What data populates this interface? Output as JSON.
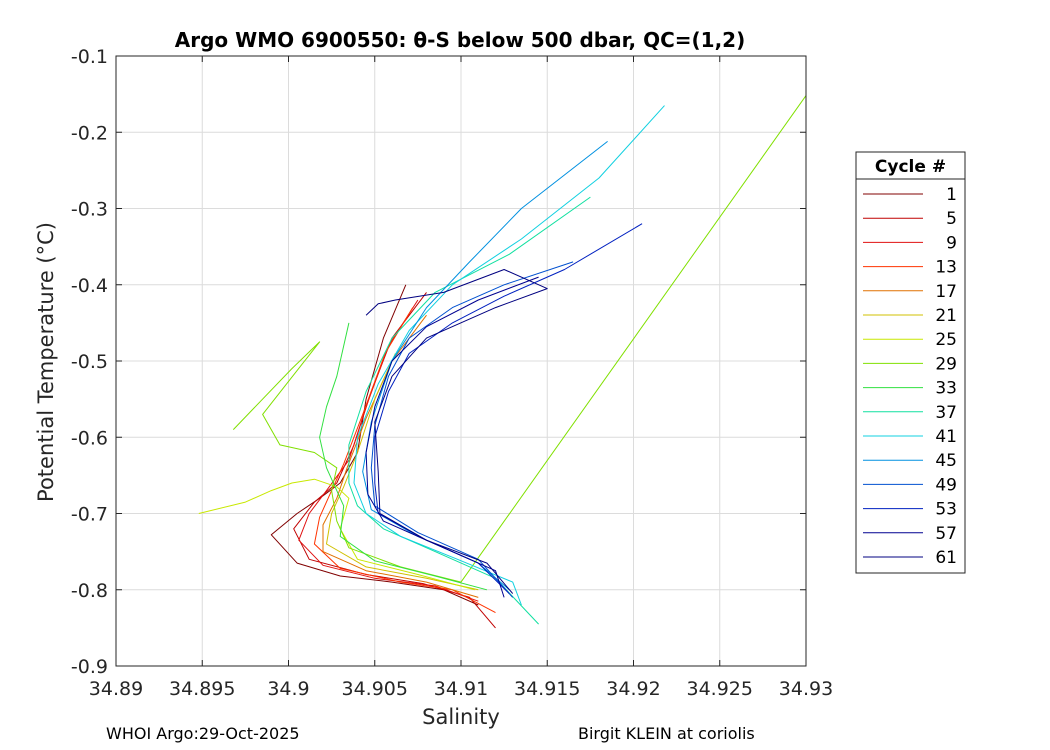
{
  "chart_data": {
    "type": "line",
    "title": "Argo WMO 6900550: θ-S below 500 dbar,  QC=(1,2)",
    "xlabel": "Salinity",
    "ylabel": "Potential Temperature (°C)",
    "xlim": [
      34.89,
      34.93
    ],
    "ylim": [
      -0.9,
      -0.1
    ],
    "x_ticks": [
      34.89,
      34.895,
      34.9,
      34.905,
      34.91,
      34.915,
      34.92,
      34.925,
      34.93
    ],
    "x_tick_labels": [
      "34.89",
      "34.895",
      "34.9",
      "34.905",
      "34.91",
      "34.915",
      "34.92",
      "34.925",
      "34.93"
    ],
    "y_ticks": [
      -0.1,
      -0.2,
      -0.3,
      -0.4,
      -0.5,
      -0.6,
      -0.7,
      -0.8,
      -0.9
    ],
    "y_tick_labels": [
      "-0.1",
      "-0.2",
      "-0.3",
      "-0.4",
      "-0.5",
      "-0.6",
      "-0.7",
      "-0.8",
      "-0.9"
    ],
    "grid": true,
    "legend": {
      "title": "Cycle #",
      "placement": "right",
      "entries": [
        {
          "label": "1",
          "color": "#800000"
        },
        {
          "label": "5",
          "color": "#c00000"
        },
        {
          "label": "9",
          "color": "#e01010"
        },
        {
          "label": "13",
          "color": "#ff3300"
        },
        {
          "label": "17",
          "color": "#e07000"
        },
        {
          "label": "21",
          "color": "#d0c000"
        },
        {
          "label": "25",
          "color": "#c8e800"
        },
        {
          "label": "29",
          "color": "#80e000"
        },
        {
          "label": "33",
          "color": "#30e040"
        },
        {
          "label": "37",
          "color": "#10e0a0"
        },
        {
          "label": "41",
          "color": "#10d0e0"
        },
        {
          "label": "45",
          "color": "#0090e0"
        },
        {
          "label": "49",
          "color": "#0050d0"
        },
        {
          "label": "53",
          "color": "#0020c0"
        },
        {
          "label": "57",
          "color": "#000090"
        },
        {
          "label": "61",
          "color": "#000080"
        }
      ]
    },
    "series": [
      {
        "name": "1",
        "color": "#800000",
        "points": [
          [
            34.9068,
            -0.4
          ],
          [
            34.9055,
            -0.47
          ],
          [
            34.9045,
            -0.55
          ],
          [
            34.904,
            -0.62
          ],
          [
            34.903,
            -0.66
          ],
          [
            34.9018,
            -0.68
          ],
          [
            34.9005,
            -0.7
          ],
          [
            34.899,
            -0.728
          ],
          [
            34.9005,
            -0.765
          ],
          [
            34.903,
            -0.782
          ],
          [
            34.906,
            -0.79
          ],
          [
            34.909,
            -0.8
          ],
          [
            34.911,
            -0.82
          ]
        ]
      },
      {
        "name": "5",
        "color": "#c00000",
        "points": [
          [
            34.908,
            -0.41
          ],
          [
            34.906,
            -0.47
          ],
          [
            34.9048,
            -0.54
          ],
          [
            34.9038,
            -0.61
          ],
          [
            34.9028,
            -0.66
          ],
          [
            34.9015,
            -0.685
          ],
          [
            34.9003,
            -0.72
          ],
          [
            34.9012,
            -0.76
          ],
          [
            34.9045,
            -0.78
          ],
          [
            34.9078,
            -0.792
          ],
          [
            34.9105,
            -0.81
          ],
          [
            34.912,
            -0.85
          ]
        ]
      },
      {
        "name": "9",
        "color": "#e01010",
        "points": [
          [
            34.9075,
            -0.42
          ],
          [
            34.9058,
            -0.48
          ],
          [
            34.9045,
            -0.56
          ],
          [
            34.9035,
            -0.63
          ],
          [
            34.9022,
            -0.67
          ],
          [
            34.9012,
            -0.7
          ],
          [
            34.9006,
            -0.735
          ],
          [
            34.902,
            -0.768
          ],
          [
            34.905,
            -0.785
          ],
          [
            34.9085,
            -0.795
          ],
          [
            34.911,
            -0.815
          ]
        ]
      },
      {
        "name": "13",
        "color": "#ff3300",
        "points": [
          [
            34.9072,
            -0.43
          ],
          [
            34.9056,
            -0.49
          ],
          [
            34.9043,
            -0.57
          ],
          [
            34.9032,
            -0.635
          ],
          [
            34.9025,
            -0.67
          ],
          [
            34.9018,
            -0.705
          ],
          [
            34.9015,
            -0.74
          ],
          [
            34.903,
            -0.772
          ],
          [
            34.9065,
            -0.79
          ],
          [
            34.9095,
            -0.8
          ],
          [
            34.912,
            -0.83
          ]
        ]
      },
      {
        "name": "17",
        "color": "#e07000",
        "points": [
          [
            34.908,
            -0.44
          ],
          [
            34.906,
            -0.5
          ],
          [
            34.9045,
            -0.575
          ],
          [
            34.9034,
            -0.64
          ],
          [
            34.9028,
            -0.68
          ],
          [
            34.902,
            -0.715
          ],
          [
            34.902,
            -0.75
          ],
          [
            34.9045,
            -0.775
          ],
          [
            34.908,
            -0.79
          ],
          [
            34.911,
            -0.81
          ]
        ]
      },
      {
        "name": "21",
        "color": "#d0c000",
        "points": [
          [
            34.9062,
            -0.49
          ],
          [
            34.905,
            -0.55
          ],
          [
            34.904,
            -0.62
          ],
          [
            34.9032,
            -0.665
          ],
          [
            34.9025,
            -0.7
          ],
          [
            34.9022,
            -0.74
          ],
          [
            34.9045,
            -0.77
          ],
          [
            34.908,
            -0.785
          ],
          [
            34.911,
            -0.8
          ]
        ]
      },
      {
        "name": "25",
        "color": "#c8e800",
        "points": [
          [
            34.8948,
            -0.7
          ],
          [
            34.8975,
            -0.685
          ],
          [
            34.899,
            -0.67
          ],
          [
            34.9002,
            -0.66
          ],
          [
            34.9015,
            -0.655
          ],
          [
            34.9028,
            -0.665
          ],
          [
            34.9035,
            -0.68
          ],
          [
            34.903,
            -0.72
          ],
          [
            34.904,
            -0.76
          ],
          [
            34.9075,
            -0.78
          ],
          [
            34.9108,
            -0.8
          ]
        ]
      },
      {
        "name": "29",
        "color": "#80e000",
        "points": [
          [
            34.8968,
            -0.59
          ],
          [
            34.9002,
            -0.51
          ],
          [
            34.9018,
            -0.475
          ],
          [
            34.8985,
            -0.57
          ],
          [
            34.8995,
            -0.61
          ],
          [
            34.9015,
            -0.62
          ],
          [
            34.9028,
            -0.64
          ],
          [
            34.9025,
            -0.67
          ],
          [
            34.9028,
            -0.71
          ],
          [
            34.9035,
            -0.745
          ],
          [
            34.9065,
            -0.77
          ],
          [
            34.91,
            -0.79
          ],
          [
            34.93,
            -0.152
          ]
        ]
      },
      {
        "name": "33",
        "color": "#30e040",
        "points": [
          [
            34.9035,
            -0.45
          ],
          [
            34.9028,
            -0.52
          ],
          [
            34.9022,
            -0.56
          ],
          [
            34.9018,
            -0.6
          ],
          [
            34.9022,
            -0.64
          ],
          [
            34.9032,
            -0.69
          ],
          [
            34.903,
            -0.73
          ],
          [
            34.905,
            -0.762
          ],
          [
            34.9085,
            -0.782
          ],
          [
            34.9115,
            -0.8
          ]
        ]
      },
      {
        "name": "37",
        "color": "#10e0a0",
        "points": [
          [
            34.9175,
            -0.285
          ],
          [
            34.9128,
            -0.36
          ],
          [
            34.9085,
            -0.41
          ],
          [
            34.906,
            -0.47
          ],
          [
            34.9045,
            -0.54
          ],
          [
            34.9035,
            -0.61
          ],
          [
            34.9035,
            -0.66
          ],
          [
            34.904,
            -0.69
          ],
          [
            34.9055,
            -0.72
          ],
          [
            34.9085,
            -0.75
          ],
          [
            34.912,
            -0.785
          ],
          [
            34.9145,
            -0.845
          ]
        ]
      },
      {
        "name": "41",
        "color": "#10d0e0",
        "points": [
          [
            34.9218,
            -0.165
          ],
          [
            34.918,
            -0.26
          ],
          [
            34.9135,
            -0.34
          ],
          [
            34.9095,
            -0.4
          ],
          [
            34.907,
            -0.46
          ],
          [
            34.9052,
            -0.53
          ],
          [
            34.904,
            -0.6
          ],
          [
            34.9038,
            -0.66
          ],
          [
            34.9045,
            -0.7
          ],
          [
            34.9065,
            -0.73
          ],
          [
            34.9098,
            -0.76
          ],
          [
            34.913,
            -0.79
          ],
          [
            34.9135,
            -0.82
          ]
        ]
      },
      {
        "name": "45",
        "color": "#0090e0",
        "points": [
          [
            34.9185,
            -0.212
          ],
          [
            34.9135,
            -0.3
          ],
          [
            34.9105,
            -0.37
          ],
          [
            34.908,
            -0.43
          ],
          [
            34.906,
            -0.5
          ],
          [
            34.9048,
            -0.58
          ],
          [
            34.9043,
            -0.645
          ],
          [
            34.9048,
            -0.695
          ],
          [
            34.9075,
            -0.73
          ],
          [
            34.911,
            -0.765
          ],
          [
            34.9128,
            -0.8
          ]
        ]
      },
      {
        "name": "49",
        "color": "#0050d0",
        "points": [
          [
            34.9165,
            -0.37
          ],
          [
            34.9125,
            -0.4
          ],
          [
            34.9095,
            -0.43
          ],
          [
            34.907,
            -0.47
          ],
          [
            34.9058,
            -0.52
          ],
          [
            34.905,
            -0.585
          ],
          [
            34.9048,
            -0.64
          ],
          [
            34.905,
            -0.69
          ],
          [
            34.9075,
            -0.725
          ],
          [
            34.911,
            -0.76
          ],
          [
            34.913,
            -0.81
          ]
        ]
      },
      {
        "name": "53",
        "color": "#0020c0",
        "points": [
          [
            34.9205,
            -0.32
          ],
          [
            34.916,
            -0.38
          ],
          [
            34.9125,
            -0.415
          ],
          [
            34.9095,
            -0.45
          ],
          [
            34.907,
            -0.49
          ],
          [
            34.9058,
            -0.54
          ],
          [
            34.905,
            -0.6
          ],
          [
            34.905,
            -0.66
          ],
          [
            34.9052,
            -0.7
          ],
          [
            34.908,
            -0.735
          ],
          [
            34.911,
            -0.765
          ],
          [
            34.9128,
            -0.805
          ]
        ]
      },
      {
        "name": "57",
        "color": "#000090",
        "points": [
          [
            34.9145,
            -0.39
          ],
          [
            34.911,
            -0.42
          ],
          [
            34.908,
            -0.455
          ],
          [
            34.906,
            -0.5
          ],
          [
            34.905,
            -0.56
          ],
          [
            34.9045,
            -0.62
          ],
          [
            34.9046,
            -0.675
          ],
          [
            34.9055,
            -0.71
          ],
          [
            34.9085,
            -0.74
          ],
          [
            34.912,
            -0.775
          ],
          [
            34.9125,
            -0.81
          ]
        ]
      },
      {
        "name": "61",
        "color": "#000080",
        "points": [
          [
            34.9045,
            -0.44
          ],
          [
            34.9052,
            -0.425
          ],
          [
            34.9062,
            -0.42
          ],
          [
            34.909,
            -0.41
          ],
          [
            34.9125,
            -0.38
          ],
          [
            34.915,
            -0.405
          ],
          [
            34.912,
            -0.43
          ],
          [
            34.908,
            -0.47
          ],
          [
            34.906,
            -0.52
          ],
          [
            34.905,
            -0.58
          ],
          [
            34.9052,
            -0.645
          ],
          [
            34.9053,
            -0.7
          ],
          [
            34.908,
            -0.735
          ],
          [
            34.9115,
            -0.765
          ],
          [
            34.913,
            -0.805
          ]
        ]
      }
    ]
  },
  "footer": {
    "left": "WHOI Argo:29-Oct-2025",
    "right": "Birgit KLEIN at coriolis"
  }
}
